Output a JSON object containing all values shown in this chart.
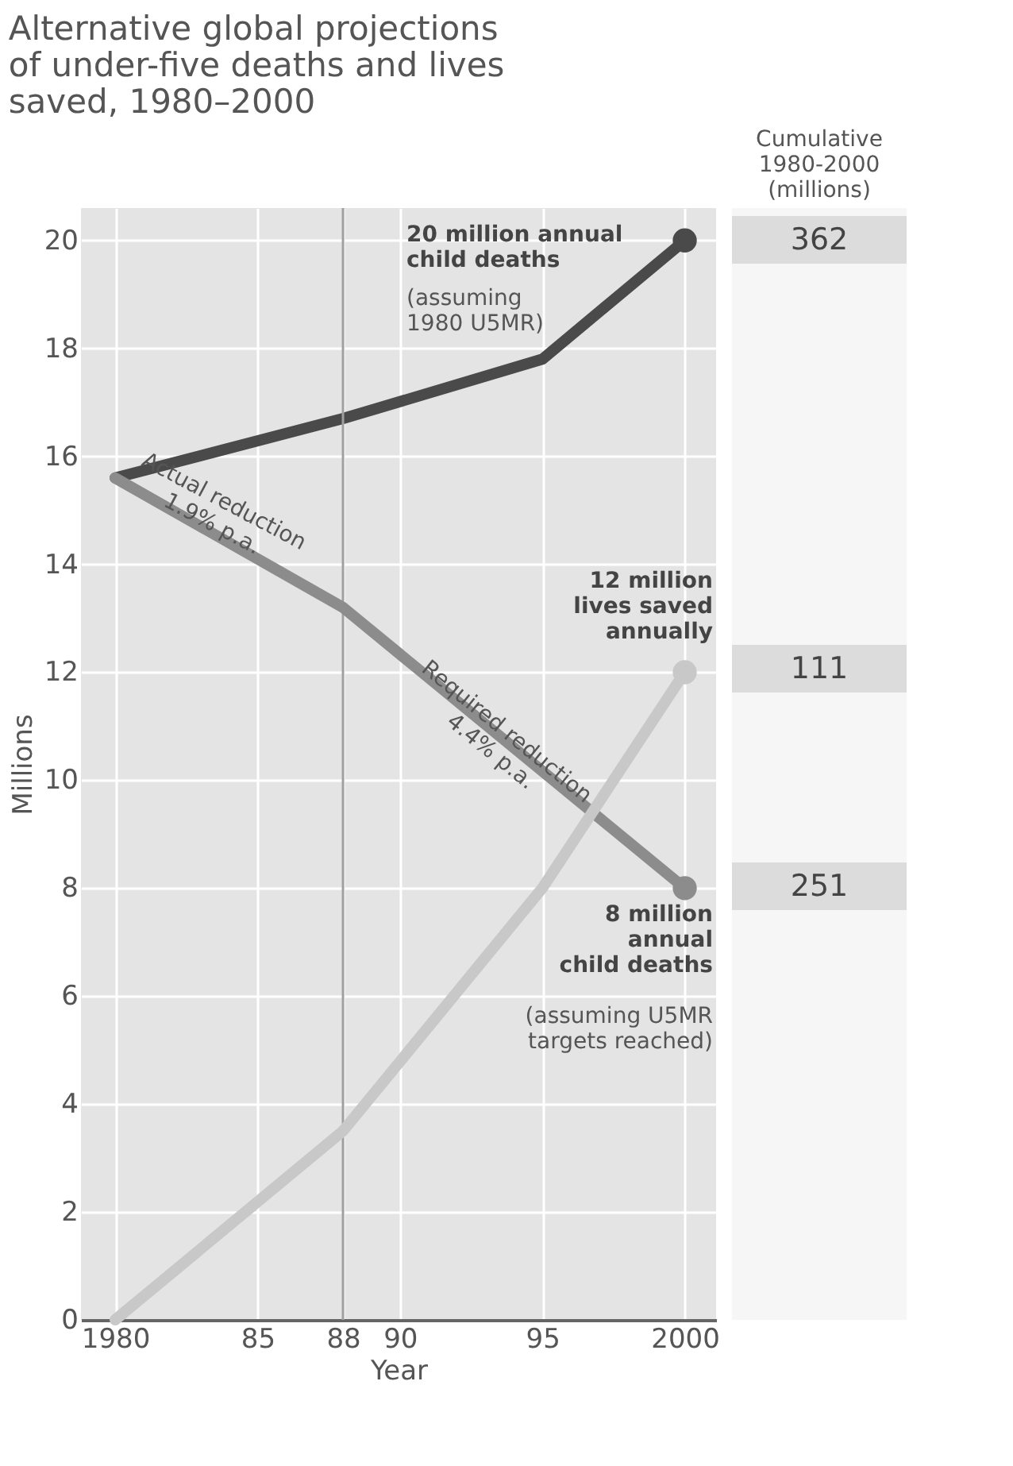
{
  "chart_data": {
    "type": "line",
    "title": "Alternative global projections\nof under-five deaths and lives\nsaved, 1980–2000",
    "xlabel": "Year",
    "ylabel": "Millions",
    "x": [
      1980,
      1988,
      1995,
      2000
    ],
    "series": [
      {
        "color": "#4a4a4a",
        "values": [
          15.6,
          16.7,
          17.8,
          20
        ]
      },
      {
        "color": "#8c8c8c",
        "values": [
          15.6,
          13.2,
          null,
          8
        ]
      },
      {
        "color": "#c8c8c8",
        "values": [
          0,
          3.5,
          8,
          12
        ]
      },
      {
        "type": "scatter",
        "color": "#4a4a4a",
        "values": [
          null,
          null,
          null,
          20
        ]
      },
      {
        "type": "scatter",
        "color": "#8c8c8c",
        "values": [
          null,
          null,
          null,
          8
        ]
      },
      {
        "type": "scatter",
        "color": "#c8c8c8",
        "values": [
          null,
          null,
          null,
          12
        ]
      }
    ],
    "xlim": [
      1978.8,
      2001.1
    ],
    "ylim": [
      0,
      20.6
    ],
    "xticks": [
      1980,
      {
        "value": 1985,
        "label": "85"
      },
      {
        "value": 1988,
        "label": "88"
      },
      {
        "value": 1990,
        "label": "90"
      },
      {
        "value": 1995,
        "label": "95"
      },
      2000
    ],
    "yticks": [
      0,
      2,
      4,
      6,
      8,
      10,
      12,
      14,
      16,
      18,
      20
    ],
    "grid": true,
    "ref_lines": [
      {
        "axis": "x",
        "value": 1988,
        "color": "#a0a0a0"
      }
    ],
    "annotations": [
      "20 million annual\nchild deaths",
      "(assuming\n1980 U5MR)",
      "Actual reduction\n1.9% p.a.",
      "Required reduction\n4.4% p.a.",
      "12 million\nlives saved\nannually",
      "8 million\nannual\nchild deaths",
      "(assuming U5MR\ntargets reached)",
      "Cumulative\n1980-2000\n(millions)",
      "362",
      "111",
      "251"
    ]
  }
}
